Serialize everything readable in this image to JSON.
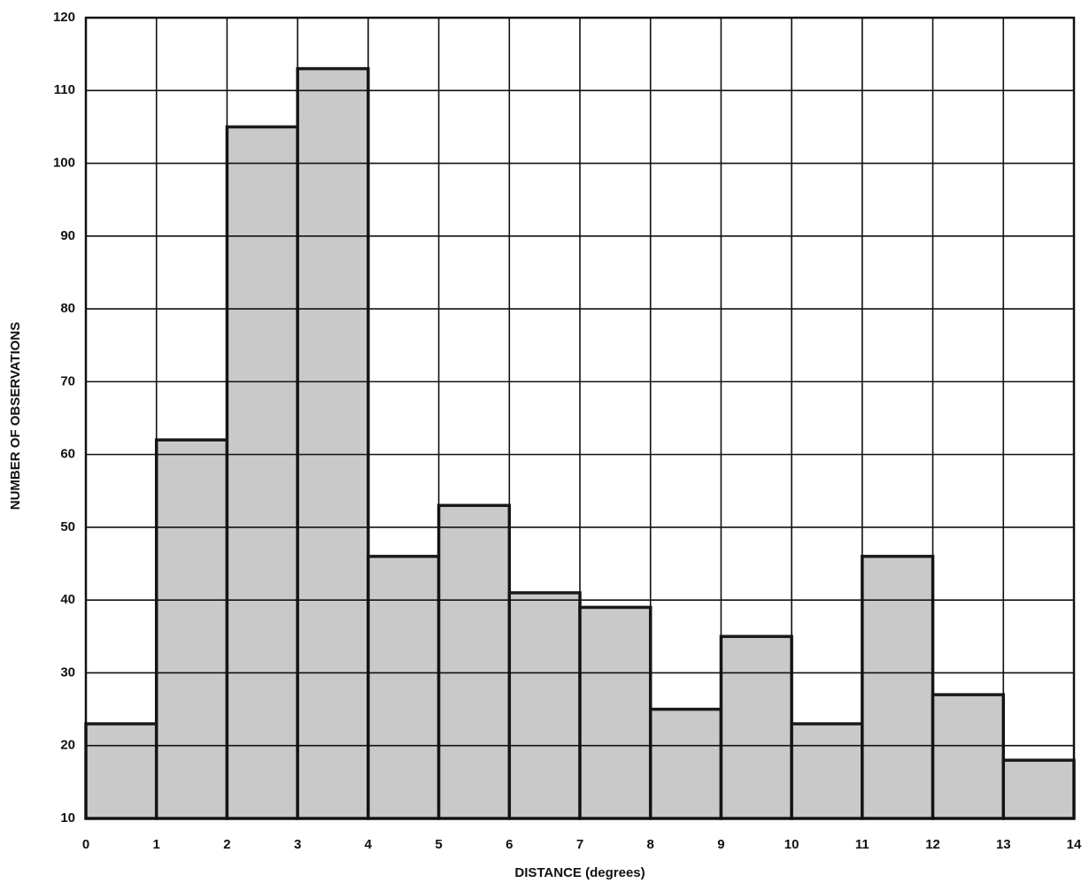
{
  "chart_data": {
    "type": "histogram",
    "xlabel": "DISTANCE (degrees)",
    "ylabel": "NUMBER OF OBSERVATIONS",
    "bins": [
      0,
      1,
      2,
      3,
      4,
      5,
      6,
      7,
      8,
      9,
      10,
      11,
      12,
      13,
      14
    ],
    "values": [
      23,
      62,
      105,
      113,
      46,
      53,
      41,
      39,
      25,
      35,
      23,
      46,
      27,
      18
    ],
    "color": "#c9c9c9",
    "xlim": [
      0,
      14
    ],
    "ylim": [
      10,
      120
    ],
    "xticks": [
      0,
      1,
      2,
      3,
      4,
      5,
      6,
      7,
      8,
      9,
      10,
      11,
      12,
      13,
      14
    ],
    "yticks": [
      10,
      20,
      30,
      40,
      50,
      60,
      70,
      80,
      90,
      100,
      110,
      120
    ],
    "grid": true
  }
}
